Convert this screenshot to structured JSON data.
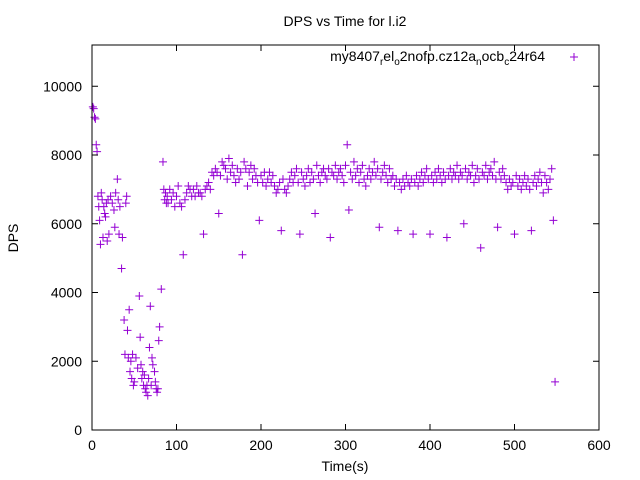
{
  "chart_data": {
    "type": "scatter",
    "title": "DPS vs Time for l.i2",
    "xlabel": "Time(s)",
    "ylabel": "DPS",
    "xlim": [
      0,
      600
    ],
    "ylim": [
      0,
      11200
    ],
    "x_ticks": [
      0,
      100,
      200,
      300,
      400,
      500,
      600
    ],
    "x_tick_labels": [
      "0",
      "100",
      "200",
      "300",
      "400",
      "500",
      "600"
    ],
    "y_ticks": [
      0,
      2000,
      4000,
      6000,
      8000,
      10000
    ],
    "y_tick_labels": [
      "0",
      "2000",
      "4000",
      "6000",
      "8000",
      "10000"
    ],
    "grid": false,
    "legend_position": "top-right",
    "series": [
      {
        "name": "my8407_rel_o2nofp.cz12a_nocb_c24r64",
        "legend_parts": [
          {
            "text": "my8407",
            "sub": false
          },
          {
            "text": "r",
            "sub": true
          },
          {
            "text": "el",
            "sub": false
          },
          {
            "text": "o",
            "sub": true
          },
          {
            "text": "2nofp.cz12a",
            "sub": false
          },
          {
            "text": "n",
            "sub": true
          },
          {
            "text": "ocb",
            "sub": false
          },
          {
            "text": "c",
            "sub": true
          },
          {
            "text": "24r64",
            "sub": false
          }
        ],
        "color": "#9400d3",
        "marker": "plus",
        "points": [
          [
            1,
            9400
          ],
          [
            2,
            9350
          ],
          [
            3,
            9100
          ],
          [
            4,
            9050
          ],
          [
            5,
            8300
          ],
          [
            6,
            8100
          ],
          [
            7,
            6800
          ],
          [
            8,
            6500
          ],
          [
            9,
            6100
          ],
          [
            10,
            5400
          ],
          [
            11,
            6900
          ],
          [
            12,
            6700
          ],
          [
            13,
            5600
          ],
          [
            14,
            6500
          ],
          [
            15,
            6300
          ],
          [
            16,
            6200
          ],
          [
            17,
            6600
          ],
          [
            18,
            5500
          ],
          [
            19,
            6700
          ],
          [
            20,
            5700
          ],
          [
            22,
            6800
          ],
          [
            24,
            6600
          ],
          [
            26,
            6400
          ],
          [
            27,
            5900
          ],
          [
            28,
            6900
          ],
          [
            30,
            7300
          ],
          [
            31,
            6700
          ],
          [
            32,
            5700
          ],
          [
            33,
            6500
          ],
          [
            35,
            4700
          ],
          [
            36,
            5600
          ],
          [
            38,
            3200
          ],
          [
            39,
            2200
          ],
          [
            40,
            6600
          ],
          [
            41,
            6800
          ],
          [
            42,
            2900
          ],
          [
            43,
            2100
          ],
          [
            44,
            3500
          ],
          [
            45,
            1700
          ],
          [
            46,
            2000
          ],
          [
            47,
            1500
          ],
          [
            48,
            2200
          ],
          [
            49,
            1300
          ],
          [
            50,
            1400
          ],
          [
            52,
            2100
          ],
          [
            54,
            1800
          ],
          [
            56,
            3900
          ],
          [
            57,
            2700
          ],
          [
            58,
            1900
          ],
          [
            59,
            1500
          ],
          [
            60,
            1700
          ],
          [
            61,
            1300
          ],
          [
            62,
            1600
          ],
          [
            63,
            1200
          ],
          [
            64,
            1100
          ],
          [
            65,
            1300
          ],
          [
            66,
            1000
          ],
          [
            67,
            1500
          ],
          [
            68,
            2400
          ],
          [
            69,
            3600
          ],
          [
            70,
            1300
          ],
          [
            71,
            2100
          ],
          [
            72,
            1900
          ],
          [
            74,
            1700
          ],
          [
            75,
            1400
          ],
          [
            76,
            1200
          ],
          [
            77,
            1100
          ],
          [
            78,
            1200
          ],
          [
            79,
            2600
          ],
          [
            80,
            3000
          ],
          [
            82,
            4100
          ],
          [
            84,
            7800
          ],
          [
            85,
            7000
          ],
          [
            86,
            6700
          ],
          [
            87,
            6900
          ],
          [
            88,
            6600
          ],
          [
            89,
            6800
          ],
          [
            90,
            6600
          ],
          [
            92,
            7000
          ],
          [
            94,
            6700
          ],
          [
            96,
            6900
          ],
          [
            98,
            6500
          ],
          [
            100,
            6800
          ],
          [
            102,
            7100
          ],
          [
            104,
            6600
          ],
          [
            106,
            6500
          ],
          [
            108,
            5100
          ],
          [
            110,
            6700
          ],
          [
            112,
            6900
          ],
          [
            114,
            7100
          ],
          [
            116,
            7000
          ],
          [
            118,
            6800
          ],
          [
            120,
            7000
          ],
          [
            122,
            6800
          ],
          [
            124,
            7100
          ],
          [
            126,
            6900
          ],
          [
            128,
            6900
          ],
          [
            130,
            6800
          ],
          [
            132,
            5700
          ],
          [
            134,
            7000
          ],
          [
            136,
            7100
          ],
          [
            138,
            7200
          ],
          [
            140,
            7000
          ],
          [
            142,
            7500
          ],
          [
            144,
            7400
          ],
          [
            146,
            7600
          ],
          [
            148,
            7500
          ],
          [
            150,
            6300
          ],
          [
            152,
            7400
          ],
          [
            154,
            7800
          ],
          [
            156,
            7700
          ],
          [
            158,
            7600
          ],
          [
            160,
            7300
          ],
          [
            162,
            7900
          ],
          [
            164,
            7500
          ],
          [
            166,
            7700
          ],
          [
            168,
            7400
          ],
          [
            170,
            7200
          ],
          [
            172,
            7600
          ],
          [
            174,
            7300
          ],
          [
            176,
            7500
          ],
          [
            178,
            5100
          ],
          [
            180,
            7800
          ],
          [
            182,
            7600
          ],
          [
            184,
            7100
          ],
          [
            186,
            7500
          ],
          [
            188,
            7700
          ],
          [
            190,
            7300
          ],
          [
            192,
            7600
          ],
          [
            194,
            7400
          ],
          [
            196,
            7200
          ],
          [
            198,
            6100
          ],
          [
            200,
            7400
          ],
          [
            202,
            7200
          ],
          [
            204,
            7500
          ],
          [
            206,
            7100
          ],
          [
            208,
            7300
          ],
          [
            210,
            7500
          ],
          [
            212,
            7200
          ],
          [
            214,
            7400
          ],
          [
            216,
            7100
          ],
          [
            218,
            6900
          ],
          [
            220,
            7000
          ],
          [
            222,
            7200
          ],
          [
            224,
            5800
          ],
          [
            226,
            7300
          ],
          [
            228,
            7000
          ],
          [
            230,
            6900
          ],
          [
            232,
            7100
          ],
          [
            234,
            7300
          ],
          [
            236,
            7500
          ],
          [
            238,
            7200
          ],
          [
            240,
            7400
          ],
          [
            242,
            7600
          ],
          [
            244,
            7200
          ],
          [
            246,
            5700
          ],
          [
            248,
            7500
          ],
          [
            250,
            7300
          ],
          [
            252,
            7100
          ],
          [
            254,
            7400
          ],
          [
            256,
            7600
          ],
          [
            258,
            7200
          ],
          [
            260,
            7500
          ],
          [
            262,
            7300
          ],
          [
            264,
            6300
          ],
          [
            266,
            7700
          ],
          [
            268,
            7400
          ],
          [
            270,
            7200
          ],
          [
            272,
            7500
          ],
          [
            274,
            7600
          ],
          [
            276,
            7400
          ],
          [
            278,
            7300
          ],
          [
            280,
            7600
          ],
          [
            282,
            5600
          ],
          [
            284,
            7500
          ],
          [
            286,
            7400
          ],
          [
            288,
            7700
          ],
          [
            290,
            7300
          ],
          [
            292,
            7500
          ],
          [
            294,
            7600
          ],
          [
            296,
            7400
          ],
          [
            298,
            7200
          ],
          [
            300,
            7700
          ],
          [
            302,
            8300
          ],
          [
            304,
            6400
          ],
          [
            306,
            7500
          ],
          [
            308,
            7300
          ],
          [
            310,
            7800
          ],
          [
            312,
            7400
          ],
          [
            314,
            7600
          ],
          [
            316,
            7200
          ],
          [
            318,
            7500
          ],
          [
            320,
            7700
          ],
          [
            322,
            7300
          ],
          [
            324,
            7100
          ],
          [
            326,
            7400
          ],
          [
            328,
            7600
          ],
          [
            330,
            7300
          ],
          [
            332,
            7500
          ],
          [
            334,
            7800
          ],
          [
            336,
            7400
          ],
          [
            338,
            7600
          ],
          [
            340,
            5900
          ],
          [
            342,
            7300
          ],
          [
            344,
            7500
          ],
          [
            346,
            7700
          ],
          [
            348,
            7400
          ],
          [
            350,
            7200
          ],
          [
            352,
            7600
          ],
          [
            354,
            7300
          ],
          [
            356,
            7400
          ],
          [
            358,
            7100
          ],
          [
            360,
            7300
          ],
          [
            362,
            5800
          ],
          [
            364,
            7200
          ],
          [
            366,
            7000
          ],
          [
            368,
            7300
          ],
          [
            370,
            7100
          ],
          [
            372,
            7400
          ],
          [
            374,
            7200
          ],
          [
            376,
            7100
          ],
          [
            378,
            7300
          ],
          [
            380,
            5700
          ],
          [
            382,
            7200
          ],
          [
            384,
            7400
          ],
          [
            386,
            7100
          ],
          [
            388,
            7300
          ],
          [
            390,
            7500
          ],
          [
            392,
            7200
          ],
          [
            394,
            7400
          ],
          [
            396,
            7600
          ],
          [
            398,
            7300
          ],
          [
            400,
            5700
          ],
          [
            402,
            7400
          ],
          [
            404,
            7200
          ],
          [
            406,
            7500
          ],
          [
            408,
            7300
          ],
          [
            410,
            7600
          ],
          [
            412,
            7400
          ],
          [
            414,
            7200
          ],
          [
            416,
            7500
          ],
          [
            418,
            7300
          ],
          [
            420,
            5600
          ],
          [
            422,
            7400
          ],
          [
            424,
            7600
          ],
          [
            426,
            7300
          ],
          [
            428,
            7500
          ],
          [
            430,
            7400
          ],
          [
            432,
            7700
          ],
          [
            434,
            7300
          ],
          [
            436,
            7500
          ],
          [
            438,
            7400
          ],
          [
            440,
            6000
          ],
          [
            442,
            7600
          ],
          [
            444,
            7300
          ],
          [
            446,
            7500
          ],
          [
            448,
            7400
          ],
          [
            450,
            7700
          ],
          [
            452,
            7200
          ],
          [
            454,
            7400
          ],
          [
            456,
            7600
          ],
          [
            458,
            7300
          ],
          [
            460,
            5300
          ],
          [
            462,
            7500
          ],
          [
            464,
            7400
          ],
          [
            466,
            7700
          ],
          [
            468,
            7300
          ],
          [
            470,
            7500
          ],
          [
            472,
            7600
          ],
          [
            474,
            7400
          ],
          [
            476,
            7800
          ],
          [
            478,
            7300
          ],
          [
            480,
            5900
          ],
          [
            482,
            7500
          ],
          [
            484,
            7300
          ],
          [
            486,
            7600
          ],
          [
            488,
            7400
          ],
          [
            490,
            7200
          ],
          [
            492,
            7000
          ],
          [
            494,
            7300
          ],
          [
            496,
            7100
          ],
          [
            498,
            7200
          ],
          [
            500,
            5700
          ],
          [
            502,
            7400
          ],
          [
            504,
            7100
          ],
          [
            506,
            7300
          ],
          [
            508,
            7000
          ],
          [
            510,
            7200
          ],
          [
            512,
            7400
          ],
          [
            514,
            7100
          ],
          [
            516,
            7300
          ],
          [
            518,
            7000
          ],
          [
            520,
            5800
          ],
          [
            522,
            7200
          ],
          [
            524,
            7400
          ],
          [
            526,
            7100
          ],
          [
            528,
            7300
          ],
          [
            530,
            7500
          ],
          [
            532,
            7200
          ],
          [
            534,
            6900
          ],
          [
            536,
            7400
          ],
          [
            538,
            7200
          ],
          [
            540,
            7000
          ],
          [
            542,
            7300
          ],
          [
            544,
            7600
          ],
          [
            546,
            6100
          ],
          [
            548,
            1400
          ]
        ]
      }
    ]
  }
}
